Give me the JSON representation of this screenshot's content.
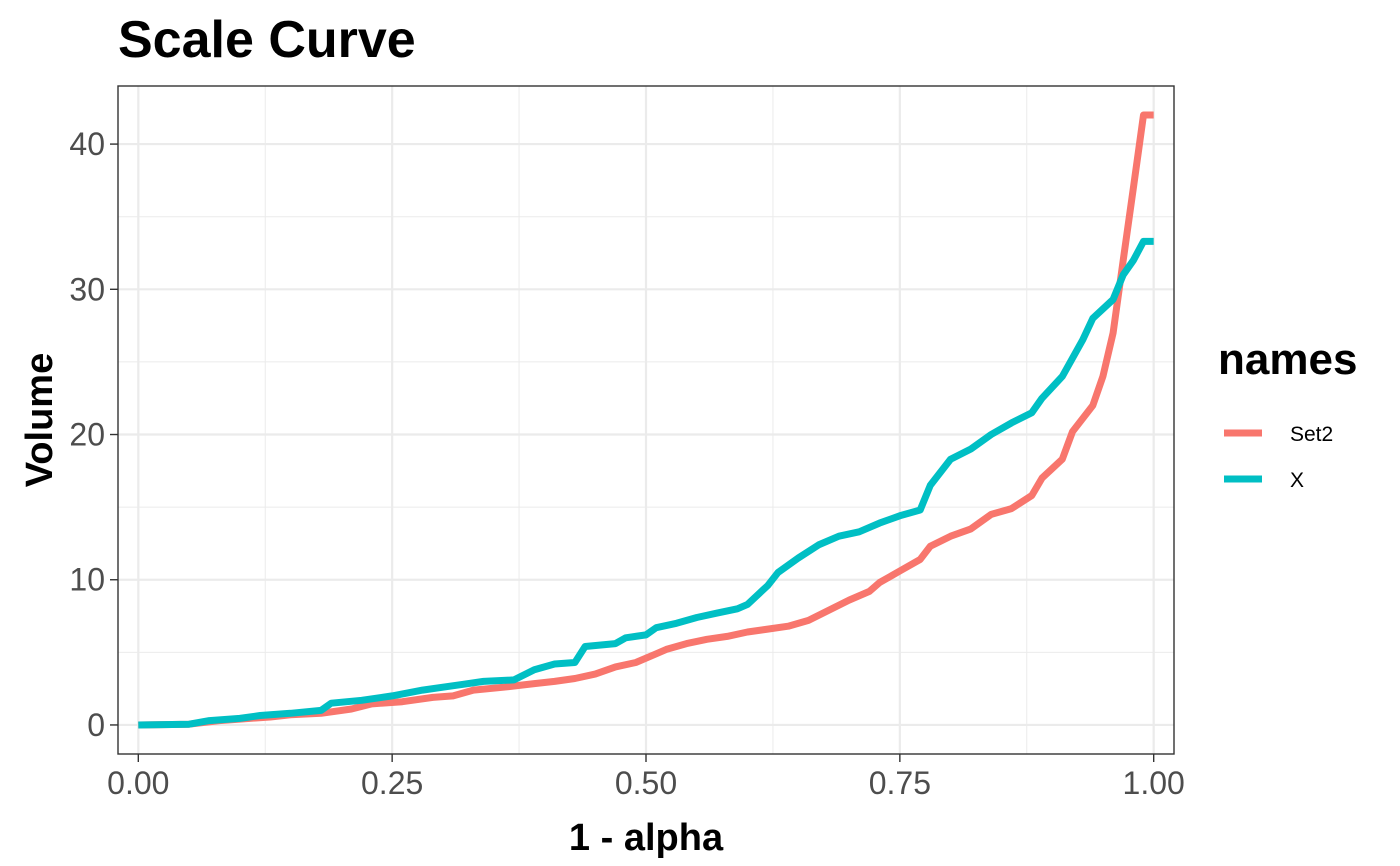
{
  "chart_data": {
    "type": "line",
    "title": "Scale Curve",
    "xlabel": "1 - alpha",
    "ylabel": "Volume",
    "xlim": [
      -0.02,
      1.02
    ],
    "ylim": [
      -2,
      44
    ],
    "x_ticks": [
      0.0,
      0.25,
      0.5,
      0.75,
      1.0
    ],
    "x_tick_labels": [
      "0.00",
      "0.25",
      "0.50",
      "0.75",
      "1.00"
    ],
    "y_ticks": [
      0,
      10,
      20,
      30,
      40
    ],
    "y_tick_labels": [
      "0",
      "10",
      "20",
      "30",
      "40"
    ],
    "x_minor": [
      0.125,
      0.375,
      0.625,
      0.875
    ],
    "y_minor": [
      5,
      15,
      25,
      35
    ],
    "grid": true,
    "legend": {
      "title": "names",
      "position": "right"
    },
    "series": [
      {
        "name": "Set2",
        "color": "#F8766D",
        "points": [
          [
            0.0,
            0.0
          ],
          [
            0.05,
            0.05
          ],
          [
            0.08,
            0.3
          ],
          [
            0.1,
            0.4
          ],
          [
            0.13,
            0.55
          ],
          [
            0.15,
            0.7
          ],
          [
            0.18,
            0.8
          ],
          [
            0.21,
            1.1
          ],
          [
            0.23,
            1.45
          ],
          [
            0.26,
            1.6
          ],
          [
            0.29,
            1.9
          ],
          [
            0.31,
            2.0
          ],
          [
            0.33,
            2.4
          ],
          [
            0.36,
            2.6
          ],
          [
            0.39,
            2.85
          ],
          [
            0.41,
            3.0
          ],
          [
            0.43,
            3.2
          ],
          [
            0.45,
            3.5
          ],
          [
            0.47,
            4.0
          ],
          [
            0.49,
            4.3
          ],
          [
            0.51,
            4.9
          ],
          [
            0.52,
            5.2
          ],
          [
            0.54,
            5.6
          ],
          [
            0.56,
            5.9
          ],
          [
            0.58,
            6.1
          ],
          [
            0.6,
            6.4
          ],
          [
            0.62,
            6.6
          ],
          [
            0.64,
            6.8
          ],
          [
            0.66,
            7.2
          ],
          [
            0.68,
            7.9
          ],
          [
            0.7,
            8.6
          ],
          [
            0.72,
            9.2
          ],
          [
            0.73,
            9.8
          ],
          [
            0.75,
            10.6
          ],
          [
            0.77,
            11.4
          ],
          [
            0.78,
            12.3
          ],
          [
            0.8,
            13.0
          ],
          [
            0.82,
            13.5
          ],
          [
            0.84,
            14.5
          ],
          [
            0.86,
            14.9
          ],
          [
            0.88,
            15.8
          ],
          [
            0.89,
            17.0
          ],
          [
            0.91,
            18.3
          ],
          [
            0.92,
            20.2
          ],
          [
            0.94,
            22.0
          ],
          [
            0.95,
            24.0
          ],
          [
            0.96,
            27.0
          ],
          [
            0.97,
            32.0
          ],
          [
            0.98,
            37.0
          ],
          [
            0.99,
            42.0
          ],
          [
            1.0,
            42.0
          ]
        ]
      },
      {
        "name": "X",
        "color": "#00BFC4",
        "points": [
          [
            0.0,
            0.0
          ],
          [
            0.05,
            0.05
          ],
          [
            0.07,
            0.3
          ],
          [
            0.1,
            0.45
          ],
          [
            0.12,
            0.65
          ],
          [
            0.15,
            0.8
          ],
          [
            0.18,
            1.0
          ],
          [
            0.19,
            1.5
          ],
          [
            0.22,
            1.7
          ],
          [
            0.25,
            2.0
          ],
          [
            0.28,
            2.4
          ],
          [
            0.3,
            2.6
          ],
          [
            0.32,
            2.8
          ],
          [
            0.34,
            3.0
          ],
          [
            0.37,
            3.1
          ],
          [
            0.39,
            3.8
          ],
          [
            0.41,
            4.2
          ],
          [
            0.43,
            4.3
          ],
          [
            0.44,
            5.4
          ],
          [
            0.47,
            5.6
          ],
          [
            0.48,
            6.0
          ],
          [
            0.5,
            6.2
          ],
          [
            0.51,
            6.7
          ],
          [
            0.53,
            7.0
          ],
          [
            0.55,
            7.4
          ],
          [
            0.57,
            7.7
          ],
          [
            0.59,
            8.0
          ],
          [
            0.6,
            8.3
          ],
          [
            0.62,
            9.6
          ],
          [
            0.63,
            10.5
          ],
          [
            0.65,
            11.5
          ],
          [
            0.67,
            12.4
          ],
          [
            0.69,
            13.0
          ],
          [
            0.71,
            13.3
          ],
          [
            0.73,
            13.9
          ],
          [
            0.75,
            14.4
          ],
          [
            0.77,
            14.8
          ],
          [
            0.78,
            16.5
          ],
          [
            0.8,
            18.3
          ],
          [
            0.82,
            19.0
          ],
          [
            0.84,
            20.0
          ],
          [
            0.86,
            20.8
          ],
          [
            0.88,
            21.5
          ],
          [
            0.89,
            22.5
          ],
          [
            0.91,
            24.0
          ],
          [
            0.93,
            26.5
          ],
          [
            0.94,
            28.0
          ],
          [
            0.96,
            29.3
          ],
          [
            0.97,
            31.0
          ],
          [
            0.98,
            32.0
          ],
          [
            0.99,
            33.3
          ],
          [
            1.0,
            33.3
          ]
        ]
      }
    ]
  }
}
